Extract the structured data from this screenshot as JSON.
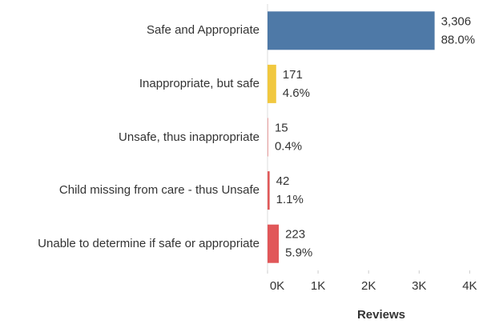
{
  "chart_data": {
    "type": "barh",
    "categories": [
      "Safe and Appropriate",
      "Inappropriate, but safe",
      "Unsafe, thus inappropriate",
      "Child missing from care - thus Unsafe",
      "Unable to determine if safe or appropriate"
    ],
    "values": [
      3306,
      171,
      15,
      42,
      223
    ],
    "value_labels": [
      "3,306",
      "171",
      "15",
      "42",
      "223"
    ],
    "shares": [
      88.0,
      4.6,
      0.4,
      1.1,
      5.9
    ],
    "share_labels": [
      "88.0%",
      "4.6%",
      "0.4%",
      "1.1%",
      "5.9%"
    ],
    "colors": [
      "#4e79a7",
      "#f1c83f",
      "#ea9a9a",
      "#e05a5a",
      "#e15759"
    ],
    "xlabel": "Reviews",
    "xlim": [
      0,
      4200
    ],
    "xticks": [
      {
        "value": 0,
        "label": "0K"
      },
      {
        "value": 1000,
        "label": "1K"
      },
      {
        "value": 2000,
        "label": "2K"
      },
      {
        "value": 3000,
        "label": "3K"
      },
      {
        "value": 4000,
        "label": "4K"
      }
    ]
  }
}
